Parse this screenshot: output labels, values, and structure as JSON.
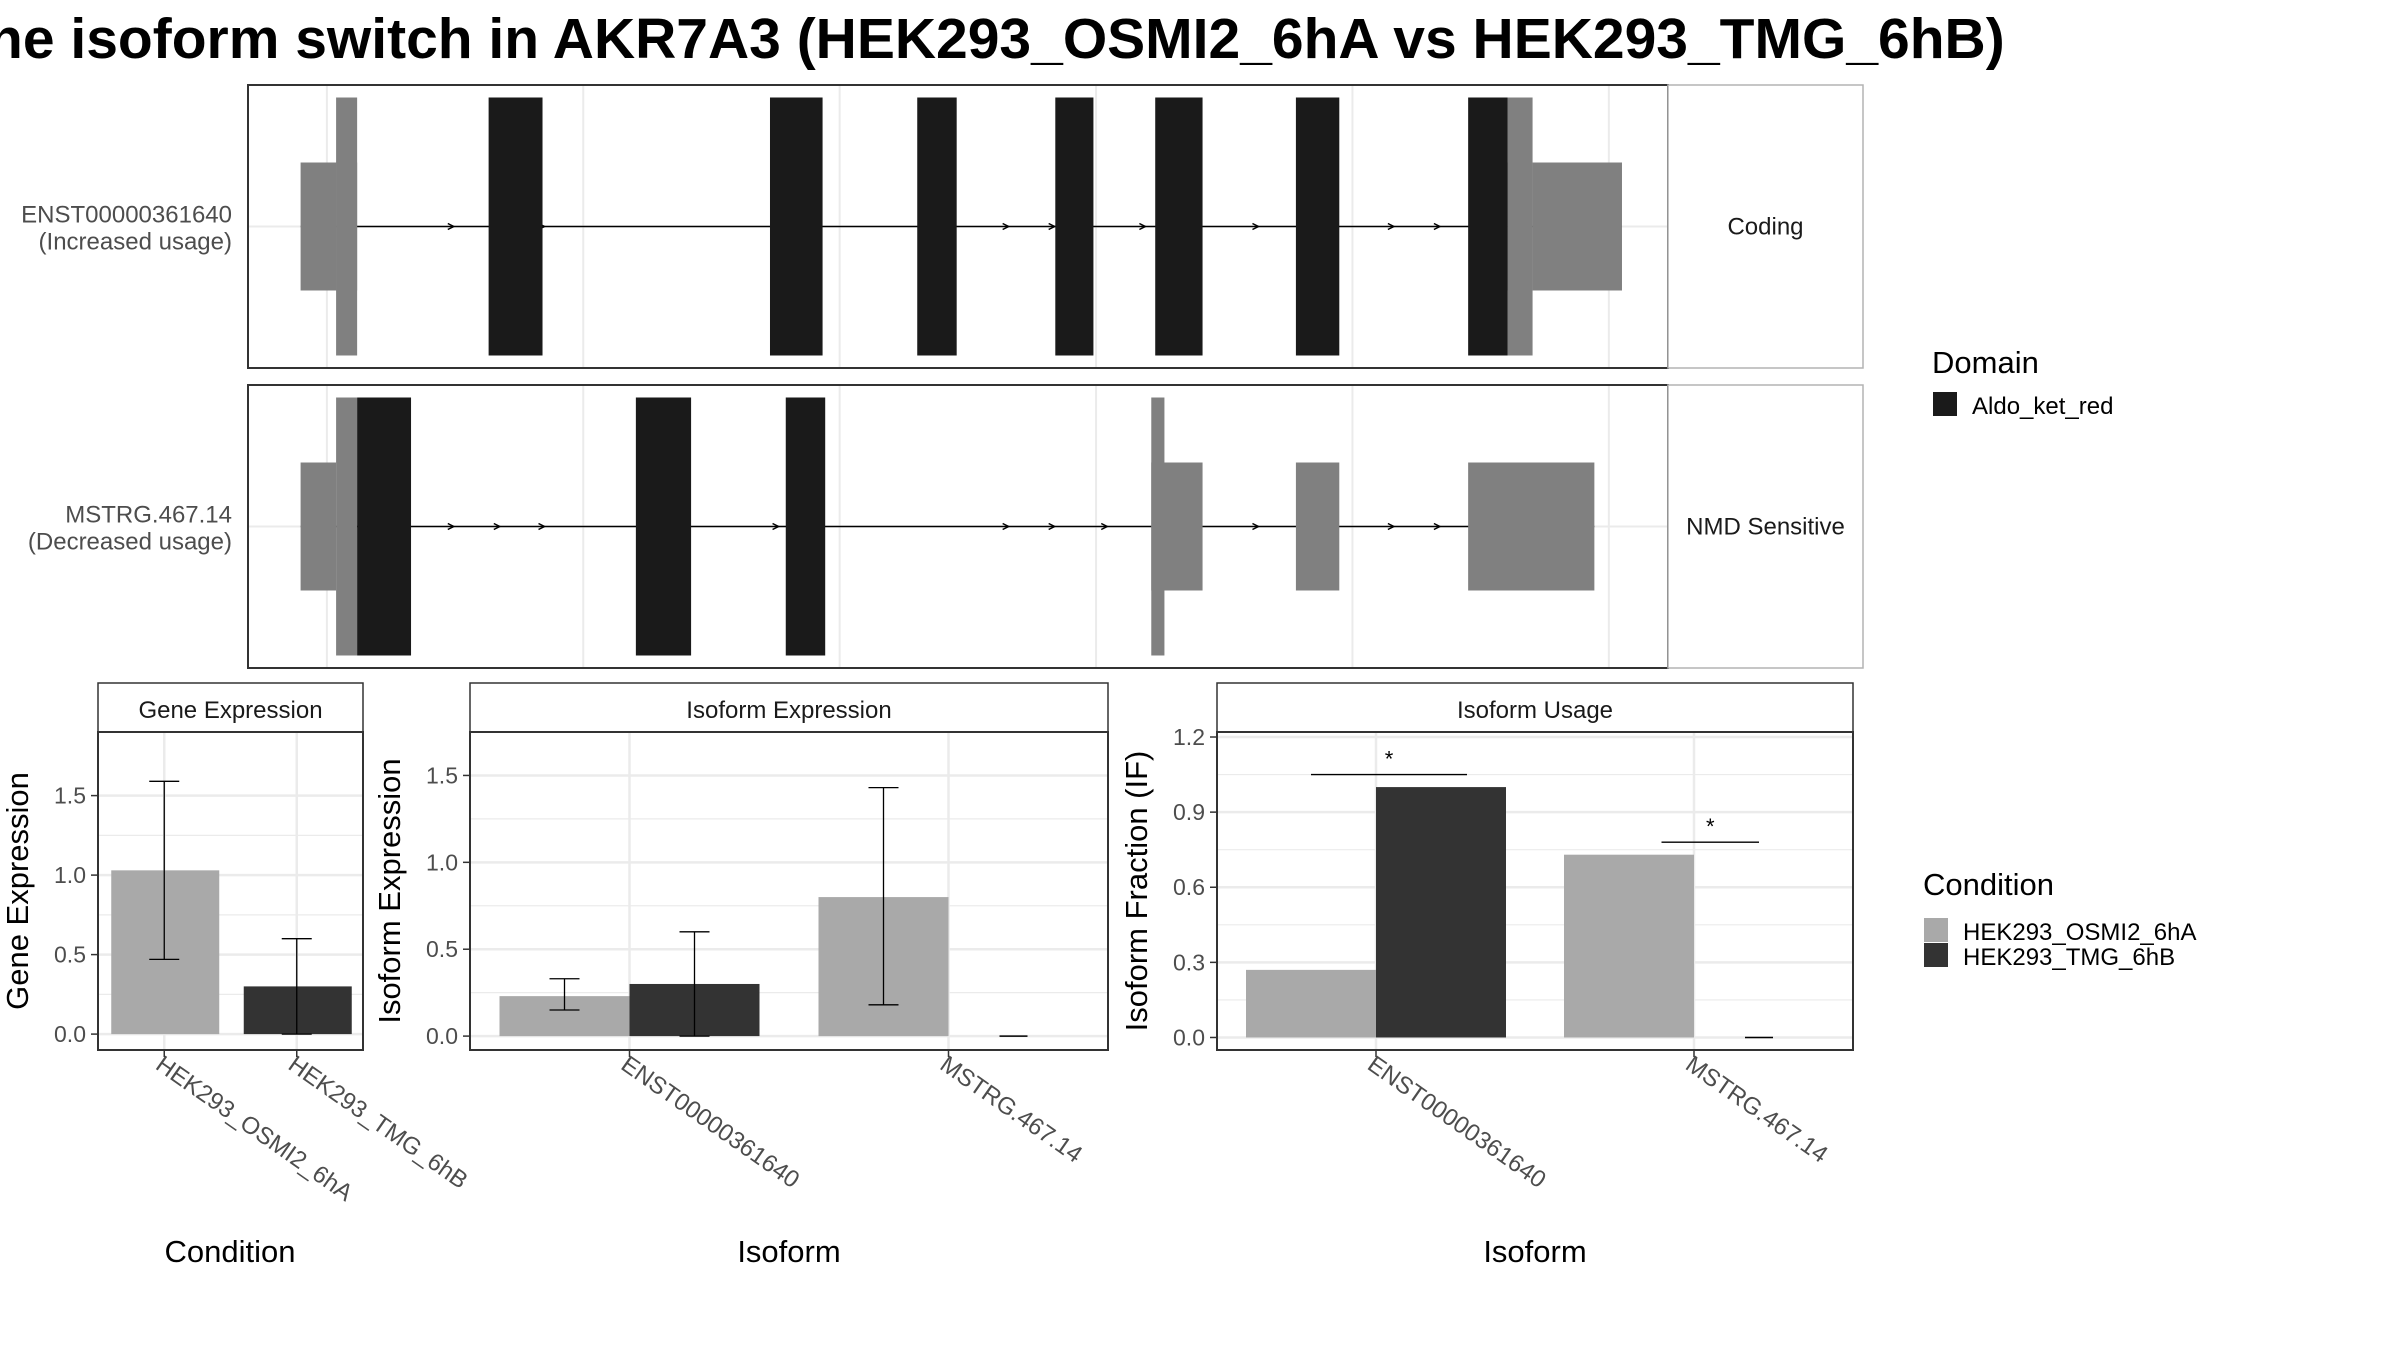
{
  "title": "ne isoform switch in AKR7A3 (HEK293_OSMI2_6hA vs HEK293_TMG_6hB)",
  "colors": {
    "domain": "#1a1a1a",
    "utr": "#808080",
    "condition_a": "#a9a9a9",
    "condition_b": "#333333",
    "panel_border": "#333333",
    "strip_border": "#b3b3b3",
    "grid": "#ebebeb",
    "text": "#000000",
    "tick_text": "#4d4d4d"
  },
  "transcripts": [
    {
      "id": "ENST00000361640",
      "usage": "(Increased usage)",
      "category": "Coding",
      "exons_cds": [
        [
          18.3,
          22.4
        ],
        [
          39.7,
          43.7
        ],
        [
          50.9,
          53.9
        ],
        [
          61.4,
          64.3
        ],
        [
          69.0,
          72.6
        ],
        [
          79.7,
          83.0
        ],
        [
          92.8,
          95.8
        ]
      ],
      "exons_utr": [
        [
          4.0,
          6.7
        ],
        [
          6.7,
          8.3
        ],
        [
          95.8,
          97.7
        ],
        [
          97.7,
          104.5
        ]
      ],
      "exons_utr_tall": [
        [
          6.7,
          8.3
        ],
        [
          95.8,
          97.7
        ]
      ],
      "arrows": [
        15.5,
        19.0,
        22.4,
        40.2,
        57.7,
        61.2,
        68.1,
        70.4,
        76.7,
        80.2,
        87.0,
        90.5
      ]
    },
    {
      "id": "MSTRG.467.14",
      "usage": "(Decreased usage)",
      "category": "NMD Sensitive",
      "exons_cds": [
        [
          8.3,
          12.4
        ],
        [
          29.5,
          33.7
        ],
        [
          40.9,
          43.9
        ]
      ],
      "exons_utr": [
        [
          4.0,
          6.7
        ],
        [
          68.7,
          72.6
        ],
        [
          79.7,
          83.0
        ],
        [
          92.8,
          102.4
        ]
      ],
      "exons_utr_tall": [
        [
          6.7,
          8.3
        ],
        [
          68.7,
          69.7
        ]
      ],
      "arrows": [
        15.5,
        19.0,
        22.4,
        40.2,
        57.7,
        61.2,
        65.2,
        70.4,
        76.7,
        80.2,
        87.0,
        90.5
      ]
    }
  ],
  "legend_domain": {
    "title": "Domain",
    "items": [
      {
        "label": "Aldo_ket_red",
        "color": "#1a1a1a"
      }
    ]
  },
  "legend_condition": {
    "title": "Condition",
    "items": [
      {
        "label": "HEK293_OSMI2_6hA",
        "color": "#a9a9a9"
      },
      {
        "label": "HEK293_TMG_6hB",
        "color": "#333333"
      }
    ]
  },
  "chart_data": [
    {
      "type": "bar",
      "title": "Gene Expression",
      "xlabel": "Condition",
      "ylabel": "Gene Expression",
      "categories": [
        "HEK293_OSMI2_6hA",
        "HEK293_TMG_6hB"
      ],
      "values": [
        1.03,
        0.3
      ],
      "error": [
        [
          0.47,
          1.59
        ],
        [
          0.0,
          0.6
        ]
      ],
      "ylim": [
        -0.1,
        1.9
      ],
      "yticks": [
        "0.0",
        "0.5",
        "1.0",
        "1.5"
      ]
    },
    {
      "type": "bar",
      "title": "Isoform Expression",
      "xlabel": "Isoform",
      "ylabel": "Isoform Expression",
      "categories": [
        "ENST00000361640",
        "MSTRG.467.14"
      ],
      "series": [
        {
          "name": "HEK293_OSMI2_6hA",
          "values": [
            0.23,
            0.8
          ],
          "error": [
            [
              0.15,
              0.33
            ],
            [
              0.18,
              1.43
            ]
          ]
        },
        {
          "name": "HEK293_TMG_6hB",
          "values": [
            0.3,
            0.0
          ],
          "error": [
            [
              0.0,
              0.6
            ],
            [
              0.0,
              0.0
            ]
          ]
        }
      ],
      "ylim": [
        -0.08,
        1.75
      ],
      "yticks": [
        "0.0",
        "0.5",
        "1.0",
        "1.5"
      ]
    },
    {
      "type": "bar",
      "title": "Isoform Usage",
      "xlabel": "Isoform",
      "ylabel": "Isoform Fraction (IF)",
      "categories": [
        "ENST00000361640",
        "MSTRG.467.14"
      ],
      "series": [
        {
          "name": "HEK293_OSMI2_6hA",
          "values": [
            0.27,
            0.73
          ]
        },
        {
          "name": "HEK293_TMG_6hB",
          "values": [
            1.0,
            0.0
          ]
        }
      ],
      "significance": [
        {
          "label": "*",
          "y": 1.05,
          "from": [
            -0.5,
            0.3
          ]
        },
        {
          "label": "*",
          "y": 0.78,
          "from": [
            -0.25,
            0.1
          ]
        }
      ],
      "ylim": [
        -0.05,
        1.22
      ],
      "yticks": [
        "0.0",
        "0.3",
        "0.6",
        "0.9",
        "1.2"
      ]
    }
  ]
}
